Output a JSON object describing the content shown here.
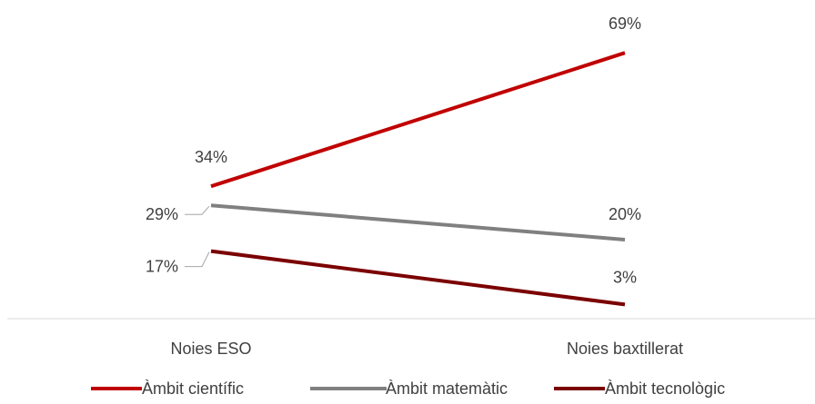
{
  "chart_data": {
    "type": "line",
    "categories": [
      "Noies ESO",
      "Noies baxtillerat"
    ],
    "series": [
      {
        "name": "Àmbit científic",
        "values": [
          34,
          69
        ],
        "labels": [
          "34%",
          "69%"
        ],
        "color": "#C00000"
      },
      {
        "name": "Àmbit matemàtic",
        "values": [
          29,
          20
        ],
        "labels": [
          "29%",
          "20%"
        ],
        "color": "#808080"
      },
      {
        "name": "Àmbit tecnològic",
        "values": [
          17,
          3
        ],
        "labels": [
          "17%",
          "3%"
        ],
        "color": "#7B0000"
      }
    ],
    "title": "",
    "xlabel": "",
    "ylabel": "",
    "ylim": [
      0,
      75
    ],
    "grid": false,
    "legend_position": "bottom"
  }
}
